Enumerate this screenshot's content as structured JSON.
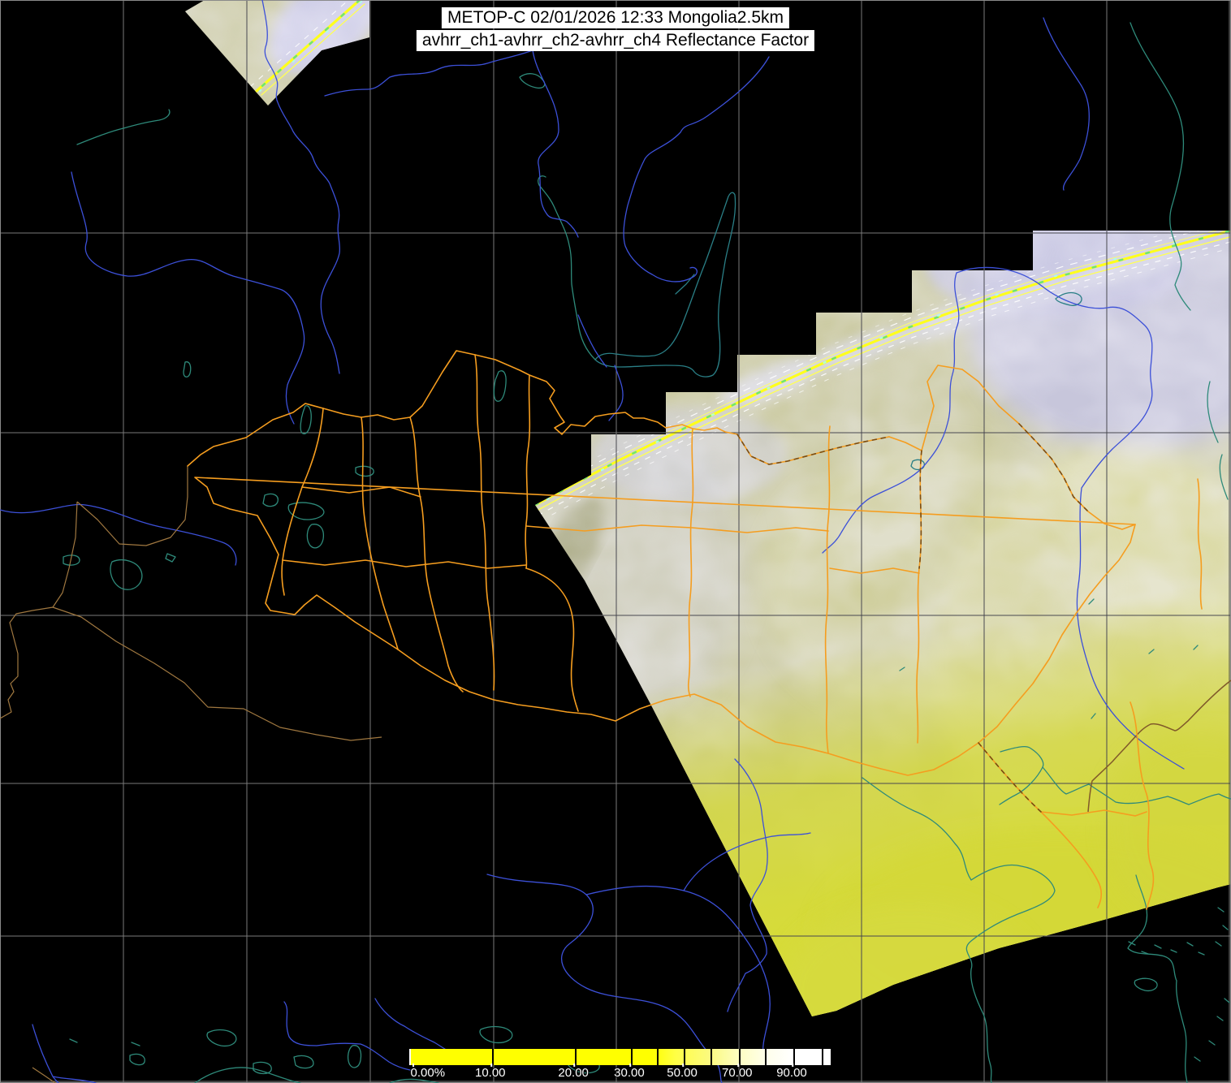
{
  "header": {
    "title_line1": "METOP-C 02/01/2026 12:33 Mongolia2.5km",
    "title_line2": "avhrr_ch1-avhrr_ch2-avhrr_ch4 Reflectance Factor",
    "satellite": "METOP-C",
    "datetime": "02/01/2026 12:33",
    "sector": "Mongolia2.5km",
    "channels": "avhrr_ch1-avhrr_ch2-avhrr_ch4",
    "product": "Reflectance Factor"
  },
  "colorbar": {
    "unit": "%",
    "labels": [
      {
        "text": "0.00%",
        "pct": 0.3,
        "first": true
      },
      {
        "text": "10.00",
        "pct": 19.3
      },
      {
        "text": "20.00",
        "pct": 39.1
      },
      {
        "text": "30.00",
        "pct": 52.4
      },
      {
        "text": "50.00",
        "pct": 65.0
      },
      {
        "text": "70.00",
        "pct": 78.1
      },
      {
        "text": "90.00",
        "pct": 91.1
      }
    ],
    "ticks_pct": [
      19.3,
      39.1,
      52.4,
      58.6,
      65.0,
      71.4,
      78.1,
      84.3,
      91.1,
      97.9
    ],
    "gradient_stops": [
      [
        "#ffff00",
        0
      ],
      [
        "#ffff00",
        57.5
      ],
      [
        "#ffff44",
        63
      ],
      [
        "#fcfa7e",
        71
      ],
      [
        "#fdfdc0",
        78
      ],
      [
        "#fefeea",
        84.5
      ],
      [
        "#ffffff",
        91
      ],
      [
        "#ffffff",
        100
      ]
    ]
  },
  "map": {
    "colors": {
      "background": "#000000",
      "graticule": "#7a7a7a",
      "province_border_orange": "#f59d1f",
      "country_border_tan": "#a07840",
      "country_border_brown": "#80592a",
      "river_blue": "#3c50d8",
      "water_teal": "#2e8a7a",
      "swath_khaki": "#c9c89c",
      "swath_cloud_lavender": "#cfcee2",
      "swath_bright_yellowgreen": "#d5d93c",
      "specular_line_yellow": "#ffff1c"
    }
  }
}
